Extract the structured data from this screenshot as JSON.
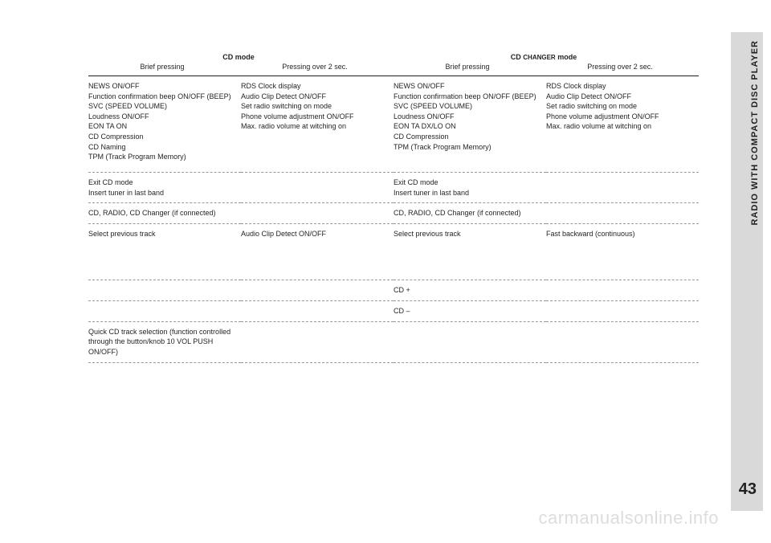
{
  "side_label": "RADIO WITH COMPACT DISC PLAYER",
  "page_number": "43",
  "watermark": "carmanualsonline.info",
  "headers": {
    "cd_mode": "CD mode",
    "cd_changer_mode_pre": "CD ",
    "cd_changer_mode_sc": "CHANGER",
    "cd_changer_mode_post": " mode",
    "brief": "Brief pressing",
    "over2": "Pressing over 2 sec."
  },
  "rows": [
    {
      "c1": "NEWS ON/OFF\nFunction confirmation beep ON/OFF (BEEP)\nSVC (SPEED VOLUME)\nLoudness ON/OFF\nEON TA ON\nCD Compression\nCD Naming\nTPM (Track Program Memory)",
      "c2": "RDS Clock display\nAudio Clip Detect ON/OFF\nSet radio switching on mode\nPhone volume adjustment ON/OFF\nMax. radio volume at witching on",
      "c3": "NEWS ON/OFF\nFunction confirmation beep ON/OFF (BEEP)\nSVC (SPEED VOLUME)\nLoudness ON/OFF\nEON TA DX/LO ON\nCD Compression\nTPM (Track Program Memory)",
      "c4": "RDS Clock display\nAudio Clip Detect ON/OFF\nSet radio switching on mode\nPhone volume adjustment ON/OFF\nMax. radio volume at witching on"
    },
    {
      "c1": "Exit CD mode\nInsert tuner in last band",
      "c2": "",
      "c3": "Exit CD mode\nInsert tuner in last band",
      "c4": ""
    },
    {
      "c1": "CD, RADIO, CD Changer (if connected)",
      "c2": "",
      "c3": "CD, RADIO, CD Changer (if connected)",
      "c4": ""
    },
    {
      "c1": "Select previous track",
      "c2": "Audio Clip Detect ON/OFF",
      "c3": "Select previous track",
      "c4": "Fast backward (continuous)"
    },
    {
      "c1": "",
      "c2": "",
      "c3": "CD +",
      "c4": ""
    },
    {
      "c1": "",
      "c2": "",
      "c3": "CD –",
      "c4": ""
    },
    {
      "c1": "Quick CD track selection (function controlled through the button/knob 10 VOL PUSH ON/OFF)",
      "c2": "",
      "c3": "",
      "c4": ""
    }
  ],
  "row_heights": [
    "120px",
    "34px",
    "18px",
    "70px",
    "26px",
    "26px",
    "44px"
  ]
}
